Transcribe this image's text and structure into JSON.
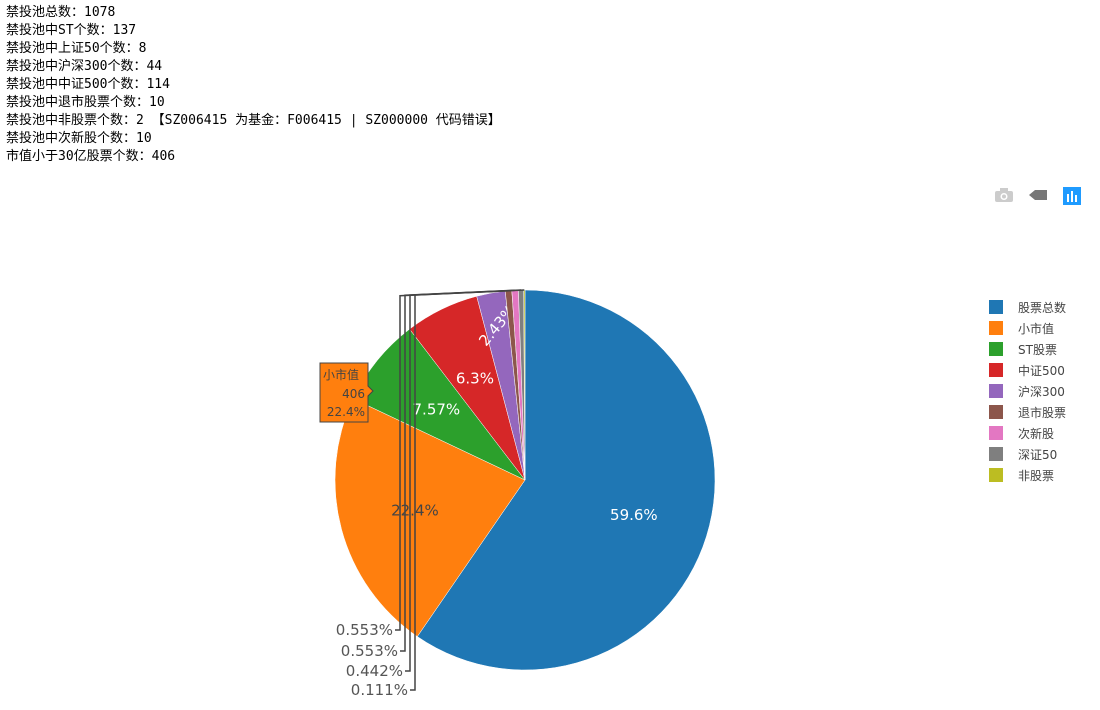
{
  "info_lines": [
    "禁投池总数：1078",
    "禁投池中ST个数：137",
    "禁投池中上证50个数：8",
    "禁投池中沪深300个数：44",
    "禁投池中中证500个数：114",
    "禁投池中退市股票个数：10",
    "禁投池中非股票个数：2 【SZ006415 为基金：F006415 | SZ000000 代码错误】",
    "禁投池中次新股个数：10",
    "市值小于30亿股票个数：406"
  ],
  "toolbar": {
    "icons": [
      "camera-icon",
      "autoscale-icon",
      "plotly-logo-icon"
    ],
    "active_color": "#1f9bff"
  },
  "chart_data": {
    "type": "pie",
    "labels": [
      "股票总数",
      "小市值",
      "ST股票",
      "中证500",
      "沪深300",
      "退市股票",
      "次新股",
      "深证50",
      "非股票"
    ],
    "values": [
      1078,
      406,
      137,
      114,
      44,
      10,
      10,
      8,
      2
    ],
    "percent_labels": [
      "59.6%",
      "22.4%",
      "7.57%",
      "6.3%",
      "2.43%",
      "0.553%",
      "0.553%",
      "0.442%",
      "0.111%"
    ],
    "colors": [
      "#1f77b4",
      "#ff7f0e",
      "#2ca02c",
      "#d62728",
      "#9467bd",
      "#8c564b",
      "#e377c2",
      "#7f7f7f",
      "#bcbd22"
    ],
    "direction": "clockwise",
    "legend_position": "right",
    "hover": {
      "label": "小市值",
      "value": "406",
      "percent": "22.4%"
    }
  }
}
